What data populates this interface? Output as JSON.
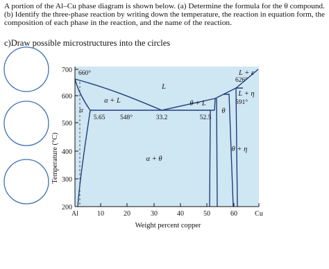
{
  "question": {
    "lines": [
      "A portion of the Al–Cu phase diagram is shown below. (a) Determine the formula for the θ compound.",
      "(b) Identify the three-phase reaction by writing down the temperature, the reaction in equation form, the",
      "composition of each phase in the reaction, and the name of the reaction."
    ]
  },
  "part_c": "c)Draw possible microstructures into the circles",
  "figure": {
    "y_axis_label": "Temperature (°C)",
    "x_axis_label": "Weight percent copper",
    "y_ticks": [
      "700",
      "600",
      "500",
      "400",
      "300",
      "200"
    ],
    "x_ticks": [
      "Al",
      "10",
      "20",
      "30",
      "40",
      "50",
      "60",
      "Cu"
    ],
    "region_labels": [
      "L",
      "α + L",
      "α",
      "α + θ",
      "θ + L",
      "θ",
      "θ + η",
      "L + ε",
      "L + η"
    ],
    "point_labels": [
      "660°",
      "5.65",
      "548°",
      "33.2",
      "52.5",
      "591°",
      "626°"
    ]
  }
}
